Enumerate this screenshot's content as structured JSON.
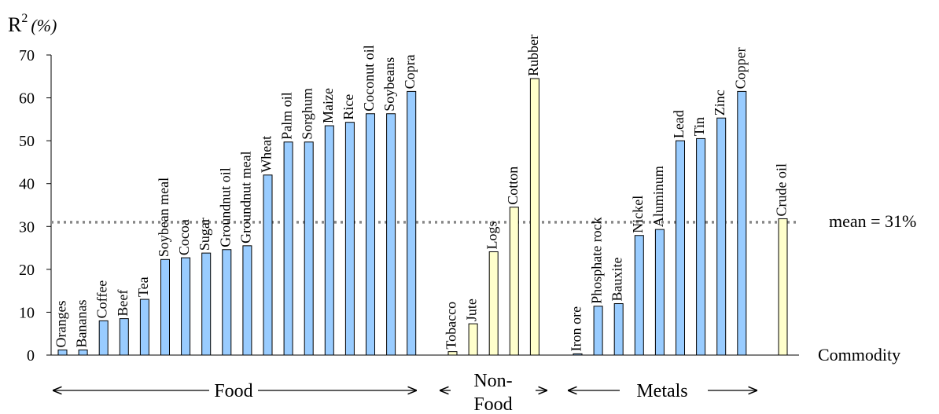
{
  "chart_data": {
    "type": "bar",
    "ylabel_main": "R",
    "ylabel_sup": "2",
    "ylabel_unit": "(%)",
    "xlabel": "Commodity",
    "ylim": [
      0,
      70
    ],
    "yticks": [
      0,
      10,
      20,
      30,
      40,
      50,
      60,
      70
    ],
    "mean": {
      "value": 31,
      "label": "mean = 31%"
    },
    "colors": {
      "food": "#99ccff",
      "nonfood": "#ffffcc",
      "metals": "#99ccff",
      "energy": "#ffffcc",
      "mean_line": "#888888",
      "bar_edge": "#000000"
    },
    "groups": [
      {
        "key": "food",
        "label": "Food",
        "label_lines": [
          "Food"
        ]
      },
      {
        "key": "nonfood",
        "label": "Non-Food",
        "label_lines": [
          "Non-",
          "Food"
        ]
      },
      {
        "key": "metals",
        "label": "Metals",
        "label_lines": [
          "Metals"
        ]
      }
    ],
    "series": [
      {
        "group": "food",
        "categories": [
          "Oranges",
          "Bananas",
          "Coffee",
          "Beef",
          "Tea",
          "Soybean meal",
          "Cocoa",
          "Sugar",
          "Groundnut oil",
          "Groundnut meal",
          "Wheat",
          "Palm oil",
          "Sorghum",
          "Maize",
          "Rice",
          "Coconut oil",
          "Soybeans",
          "Copra"
        ],
        "values": [
          1.2,
          1.2,
          8,
          8.5,
          13,
          22.3,
          22.7,
          23.8,
          24.6,
          25.5,
          42,
          49.7,
          49.7,
          53.5,
          54.3,
          56.3,
          56.3,
          61.5
        ]
      },
      {
        "group": "nonfood",
        "categories": [
          "Tobacco",
          "Jute",
          "Logs",
          "Cotton",
          "Rubber"
        ],
        "values": [
          0.8,
          7.3,
          24.1,
          34.5,
          64.5
        ]
      },
      {
        "group": "metals",
        "categories": [
          "Iron ore",
          "Phosphate rock",
          "Bauxite",
          "Nickel",
          "Aluminum",
          "Lead",
          "Tin",
          "Zinc",
          "Copper"
        ],
        "values": [
          0.3,
          11.4,
          12,
          27.9,
          29.3,
          50,
          50.5,
          55.3,
          61.5
        ]
      },
      {
        "group": "energy",
        "categories": [
          "Crude oil"
        ],
        "values": [
          31.8
        ]
      }
    ]
  }
}
